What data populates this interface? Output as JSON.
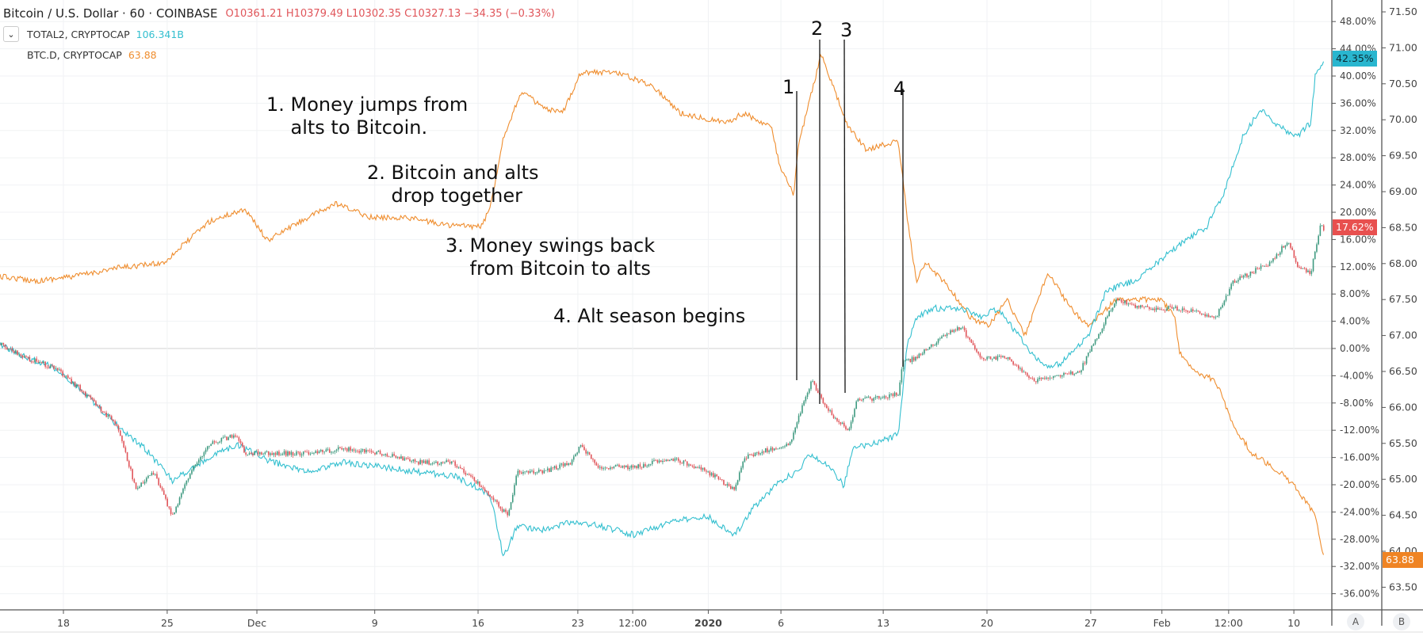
{
  "legend": {
    "title": "Bitcoin / U.S. Dollar · 60 · COINBASE",
    "ohlc": "O10361.21 H10379.49 L10302.35 C10327.13 −34.35 (−0.33%)",
    "series2_name": "TOTAL2, CRYPTOCAP",
    "series2_value": "106.341B",
    "series3_name": "BTC.D, CRYPTOCAP",
    "series3_value": "63.88"
  },
  "annotations": {
    "note1": "1. Money jumps from\n    alts to Bitcoin.",
    "note2": "2. Bitcoin and alts\n    drop together",
    "note3": "3. Money swings back\n    from Bitcoin to alts",
    "note4": "4. Alt season begins",
    "markers": [
      "1",
      "2",
      "3",
      "4"
    ]
  },
  "badges": {
    "total2": "42.35%",
    "btc": "17.62%",
    "btcd": "63.88"
  },
  "scale_buttons": {
    "a": "A",
    "b": "B"
  },
  "colors": {
    "btc_up": "#3f9a80",
    "btc_down": "#e0555a",
    "total2": "#33bfcf",
    "btcd": "#ef8d2e"
  },
  "chart_data": {
    "type": "line",
    "x_unit": "days since Nov 18 2019",
    "x_ticks": [
      {
        "label": "18",
        "x": 0
      },
      {
        "label": "25",
        "x": 7
      },
      {
        "label": "Dec",
        "x": 13.05
      },
      {
        "label": "9",
        "x": 21
      },
      {
        "label": "16",
        "x": 27.97
      },
      {
        "label": "23",
        "x": 34.7
      },
      {
        "label": "12:00",
        "x": 38.4
      },
      {
        "label": "2020",
        "x": 43.5
      },
      {
        "label": "6",
        "x": 48.4
      },
      {
        "label": "13",
        "x": 55.3
      },
      {
        "label": "20",
        "x": 62.3
      },
      {
        "label": "27",
        "x": 69.3
      },
      {
        "label": "Feb",
        "x": 74.1
      },
      {
        "label": "12:00",
        "x": 78.6
      },
      {
        "label": "10",
        "x": 83.0
      }
    ],
    "pct_axis": {
      "ticks": [
        "48.00%",
        "44.00%",
        "40.00%",
        "36.00%",
        "32.00%",
        "28.00%",
        "24.00%",
        "20.00%",
        "16.00%",
        "12.00%",
        "8.00%",
        "4.00%",
        "0.00%",
        "-4.00%",
        "-8.00%",
        "-12.00%",
        "-16.00%",
        "-20.00%",
        "-24.00%",
        "-28.00%",
        "-32.00%",
        "-36.00%"
      ],
      "range": [
        -39,
        51
      ]
    },
    "dom_axis": {
      "ticks": [
        "71.50",
        "71.00",
        "70.50",
        "70.00",
        "69.50",
        "69.00",
        "68.50",
        "68.00",
        "67.50",
        "67.00",
        "66.50",
        "66.00",
        "65.50",
        "65.00",
        "64.50",
        "64.00",
        "63.50"
      ],
      "range": [
        63.2,
        71.66
      ]
    },
    "series": [
      {
        "name": "BTCUSD (% change)",
        "axis": "pct",
        "style": "candles",
        "x": [
          -4.28,
          -2.44,
          -0.61,
          1.23,
          3.68,
          4.9,
          6.12,
          7.35,
          8.57,
          9.8,
          11.63,
          12.24,
          14.08,
          16.53,
          18.98,
          21.42,
          23.87,
          26.32,
          28.77,
          29.99,
          30.6,
          32.44,
          34.28,
          34.89,
          36.11,
          38.56,
          41.01,
          43.46,
          45.29,
          45.9,
          47.74,
          48.96,
          49.58,
          50.49,
          51.11,
          52.02,
          52.94,
          53.55,
          54.47,
          56.31,
          56.61,
          57.53,
          59.37,
          60.59,
          61.82,
          63.65,
          65.49,
          66.71,
          68.55,
          69.77,
          71.0,
          72.83,
          75.28,
          77.73,
          78.95,
          80.18,
          81.4,
          82.63,
          83.24,
          84.15,
          84.77,
          85.07
        ],
        "y": [
          0.6,
          -1.4,
          -2.8,
          -6.1,
          -11.4,
          -20.7,
          -18.1,
          -24.7,
          -18.1,
          -14.1,
          -12.7,
          -15.4,
          -15.4,
          -15.4,
          -14.7,
          -15.4,
          -16.7,
          -16.7,
          -21.4,
          -24.7,
          -18.1,
          -18.1,
          -16.7,
          -14.1,
          -17.4,
          -17.4,
          -16.1,
          -18.1,
          -20.7,
          -16.1,
          -14.7,
          -14.1,
          -10.1,
          -4.7,
          -7.4,
          -10.1,
          -12.1,
          -7.4,
          -7.4,
          -6.7,
          -2.1,
          -1.4,
          1.9,
          3.2,
          -1.4,
          -1.4,
          -4.7,
          -4.1,
          -3.4,
          1.9,
          7.2,
          5.9,
          5.9,
          4.6,
          9.9,
          11.2,
          12.6,
          15.9,
          11.9,
          11.2,
          17.9,
          17.62
        ]
      },
      {
        "name": "TOTAL2 (% change)",
        "axis": "pct",
        "style": "line",
        "x": [
          -4.28,
          -2.44,
          -0.61,
          1.23,
          3.68,
          5.51,
          7.35,
          9.8,
          11.63,
          14.08,
          16.53,
          18.98,
          21.42,
          23.87,
          26.32,
          28.77,
          29.69,
          30.6,
          32.44,
          34.28,
          36.11,
          38.56,
          41.01,
          43.46,
          45.29,
          46.52,
          48.35,
          49.58,
          50.19,
          51.41,
          52.64,
          53.25,
          54.47,
          56.31,
          56.92,
          57.53,
          58.76,
          60.59,
          61.82,
          63.04,
          64.88,
          66.1,
          67.32,
          69.16,
          70.38,
          72.22,
          75.28,
          77.12,
          78.35,
          79.56,
          80.79,
          82.01,
          83.24,
          84.15,
          84.46,
          85.07
        ],
        "y": [
          0.6,
          -1.4,
          -2.8,
          -6.1,
          -11.4,
          -14.7,
          -19.4,
          -16.1,
          -14.1,
          -16.7,
          -18.1,
          -16.7,
          -17.4,
          -18.1,
          -18.7,
          -21.4,
          -30.7,
          -26.0,
          -26.7,
          -25.4,
          -26.0,
          -27.4,
          -25.4,
          -24.7,
          -27.4,
          -23.4,
          -19.4,
          -18.1,
          -15.4,
          -16.7,
          -20.1,
          -14.7,
          -14.1,
          -12.7,
          0.6,
          4.6,
          5.9,
          5.9,
          4.6,
          5.9,
          0.6,
          -2.8,
          -2.1,
          1.9,
          8.6,
          9.9,
          15.2,
          17.9,
          23.2,
          31.2,
          35.2,
          32.5,
          31.2,
          33.2,
          40.5,
          42.35
        ]
      },
      {
        "name": "BTC.D",
        "axis": "dom",
        "style": "line",
        "x": [
          -4.28,
          -1.83,
          0.62,
          3.68,
          6.74,
          9.8,
          12.24,
          13.77,
          15.92,
          18.36,
          20.81,
          23.26,
          25.71,
          28.16,
          28.77,
          29.69,
          30.91,
          32.44,
          33.66,
          34.89,
          37.34,
          39.78,
          41.62,
          44.68,
          45.9,
          47.74,
          48.35,
          49.27,
          49.58,
          50.49,
          51.11,
          52.02,
          52.94,
          54.17,
          56.31,
          56.92,
          57.53,
          58.14,
          59.37,
          61.2,
          62.43,
          63.65,
          64.88,
          66.41,
          67.94,
          69.16,
          71.0,
          74.06,
          74.97,
          75.28,
          76.5,
          77.73,
          78.95,
          80.18,
          82.01,
          83.24,
          84.46,
          85.07
        ],
        "y": [
          67.82,
          67.76,
          67.82,
          67.94,
          68.01,
          68.58,
          68.76,
          68.32,
          68.58,
          68.83,
          68.64,
          68.64,
          68.54,
          68.51,
          68.76,
          69.77,
          70.4,
          70.15,
          70.09,
          70.66,
          70.66,
          70.47,
          70.09,
          69.96,
          70.09,
          69.9,
          69.33,
          68.95,
          69.65,
          70.4,
          70.91,
          70.4,
          69.9,
          69.58,
          69.71,
          68.64,
          67.76,
          68.01,
          67.76,
          67.25,
          67.13,
          67.5,
          67.0,
          67.88,
          67.38,
          67.13,
          67.5,
          67.5,
          67.25,
          66.75,
          66.49,
          66.37,
          65.74,
          65.36,
          65.11,
          64.86,
          64.48,
          63.88
        ]
      }
    ],
    "event_lines_x": [
      48.7,
      50.3,
      51.9,
      55.8
    ]
  }
}
